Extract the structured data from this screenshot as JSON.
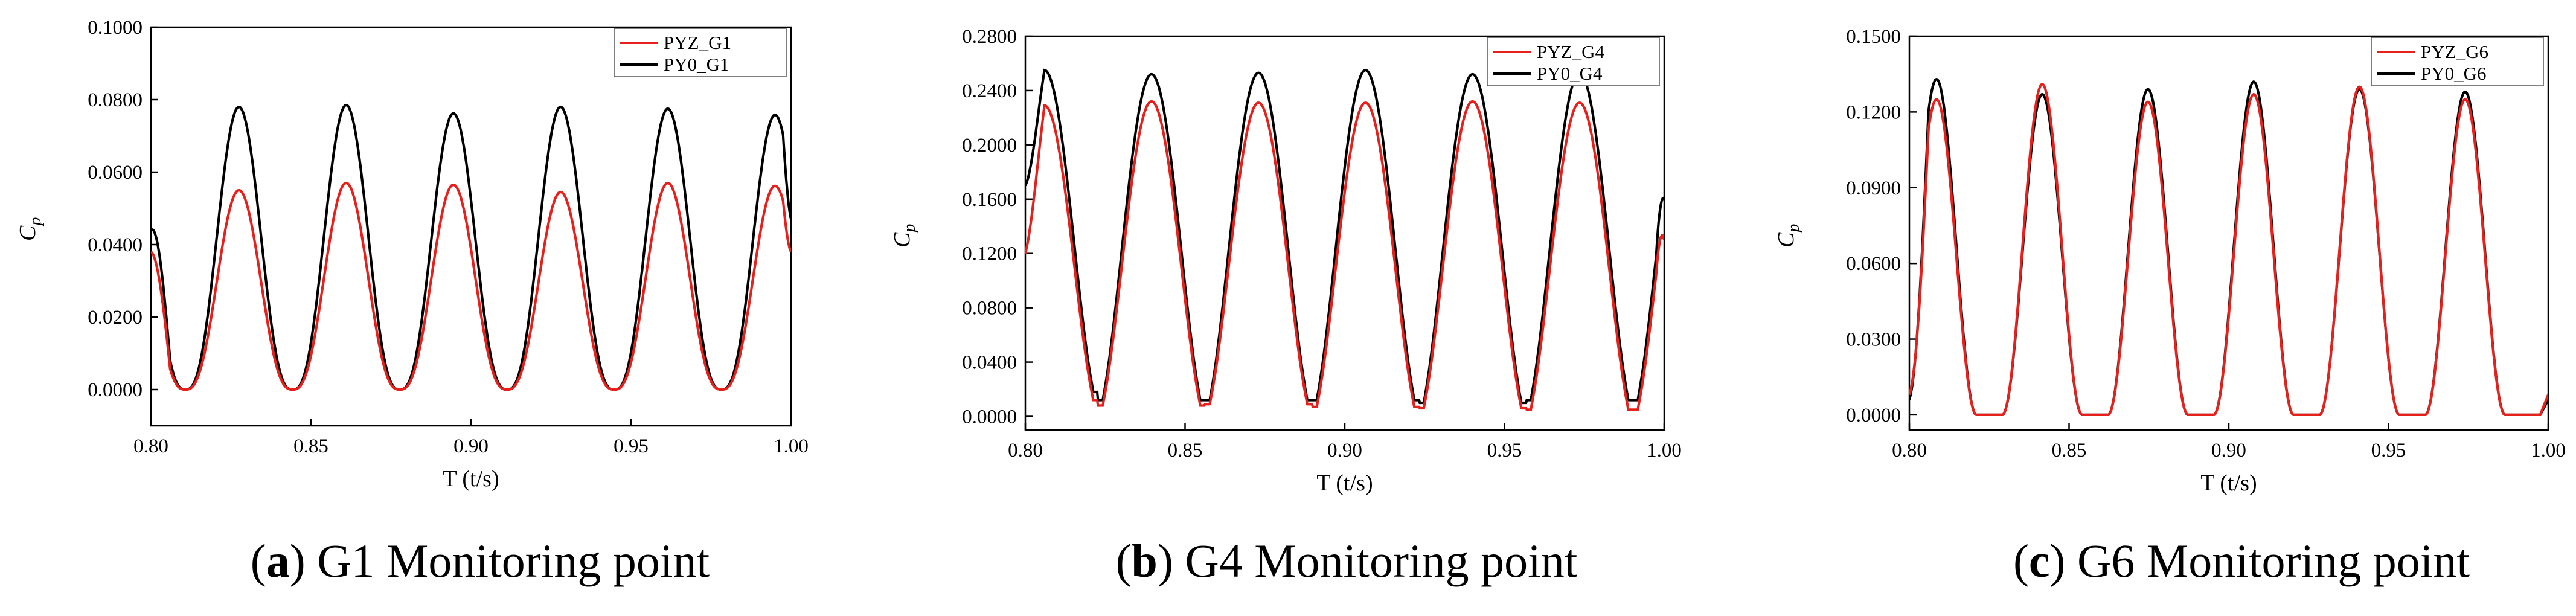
{
  "chart_data": [
    {
      "type": "line",
      "panel_letter": "a",
      "caption": "G1 Monitoring point",
      "xlabel": "T (t/s)",
      "ylabel": "C",
      "ylabel_sub": "p",
      "xlim": [
        0.8,
        1.0
      ],
      "ylim": [
        -0.01,
        0.1
      ],
      "x_ticks": [
        "0.80",
        "0.85",
        "0.90",
        "0.95",
        "1.00"
      ],
      "y_ticks": [
        "0.0000",
        "0.0200",
        "0.0400",
        "0.0600",
        "0.0800",
        "0.1000"
      ],
      "legend_position": "top-right",
      "period": 0.0335,
      "first_peak": 0.8275,
      "series": [
        {
          "name": "PYZ_G1",
          "color": "#e8201c",
          "shape": "sine",
          "start_value": 0.038,
          "end_value": 0.038,
          "peaks": [
            0.055,
            0.057,
            0.0565,
            0.0545,
            0.057,
            0.0562
          ]
        },
        {
          "name": "PY0_G1",
          "color": "#000000",
          "shape": "sine",
          "start_value": 0.044,
          "end_value": 0.047,
          "peaks": [
            0.078,
            0.0785,
            0.0762,
            0.078,
            0.0775,
            0.0758
          ]
        }
      ]
    },
    {
      "type": "line",
      "panel_letter": "b",
      "caption": "G4 Monitoring point",
      "xlabel": "T (t/s)",
      "ylabel": "C",
      "ylabel_sub": "p",
      "xlim": [
        0.8,
        1.0
      ],
      "ylim": [
        -0.01,
        0.28
      ],
      "x_ticks": [
        "0.80",
        "0.85",
        "0.90",
        "0.95",
        "1.00"
      ],
      "y_ticks": [
        "0.0000",
        "0.0400",
        "0.0800",
        "0.1200",
        "0.1600",
        "0.2000",
        "0.2400",
        "0.2800"
      ],
      "legend_position": "top-right",
      "period": 0.0335,
      "first_peak": 0.806,
      "series": [
        {
          "name": "PYZ_G4",
          "color": "#e8201c",
          "shape": "broad",
          "start_value": 0.12,
          "end_value": 0.13,
          "peaks": [
            0.229,
            0.232,
            0.231,
            0.231,
            0.232,
            0.231
          ],
          "troughs": [
            0.012,
            0.008,
            0.009,
            0.007,
            0.006,
            0.005
          ]
        },
        {
          "name": "PY0_G4",
          "color": "#000000",
          "shape": "broad",
          "start_value": 0.17,
          "end_value": 0.16,
          "peaks": [
            0.255,
            0.252,
            0.253,
            0.255,
            0.252,
            0.253
          ],
          "troughs": [
            0.018,
            0.012,
            0.012,
            0.012,
            0.01,
            0.012
          ]
        }
      ]
    },
    {
      "type": "line",
      "panel_letter": "c",
      "caption": "G6 Monitoring point",
      "xlabel": "T (t/s)",
      "ylabel": "C",
      "ylabel_sub": "p",
      "xlim": [
        0.8,
        1.0
      ],
      "ylim": [
        -0.006,
        0.15
      ],
      "x_ticks": [
        "0.80",
        "0.85",
        "0.90",
        "0.95",
        "1.00"
      ],
      "y_ticks": [
        "0.0000",
        "0.0300",
        "0.0600",
        "0.0900",
        "0.1200",
        "0.1500"
      ],
      "legend_position": "top-right",
      "period": 0.0331,
      "first_peak": 0.8085,
      "series": [
        {
          "name": "PYZ_G6",
          "color": "#e8201c",
          "shape": "narrow",
          "start_value": 0.008,
          "end_value": 0.008,
          "peaks": [
            0.125,
            0.131,
            0.124,
            0.127,
            0.13,
            0.125
          ]
        },
        {
          "name": "PY0_G6",
          "color": "#000000",
          "shape": "narrow",
          "start_value": 0.006,
          "end_value": 0.006,
          "peaks": [
            0.133,
            0.127,
            0.129,
            0.132,
            0.129,
            0.128
          ]
        }
      ]
    }
  ]
}
